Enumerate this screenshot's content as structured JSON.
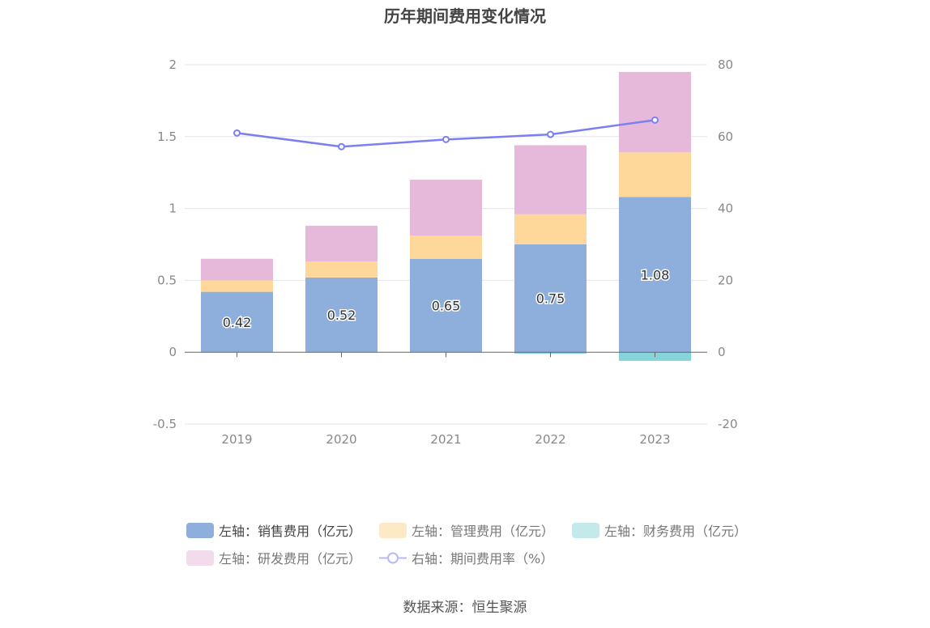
{
  "title": "历年期间费用变化情况",
  "source": "数据来源：恒生聚源",
  "colors": {
    "sales": "#8eaedb",
    "admin": "#fed89b",
    "finance": "#86d3d8",
    "rd": "#e6b9da",
    "rate": "#7b7fef"
  },
  "chart_data": {
    "type": "bar",
    "stacked": true,
    "categories": [
      "2019",
      "2020",
      "2021",
      "2022",
      "2023"
    ],
    "left_axis": {
      "ylim": [
        -0.5,
        2
      ],
      "ticks": [
        "-0.5",
        "0",
        "0.5",
        "1",
        "1.5",
        "2"
      ]
    },
    "right_axis": {
      "ylim": [
        -20,
        80
      ],
      "ticks": [
        "-20",
        "0",
        "20",
        "40",
        "60",
        "80"
      ]
    },
    "series": [
      {
        "name": "左轴：销售费用（亿元）",
        "axis": "left",
        "type": "bar",
        "values": [
          0.42,
          0.52,
          0.65,
          0.75,
          1.08
        ],
        "labels": [
          "0.42",
          "0.52",
          "0.65",
          "0.75",
          "1.08"
        ]
      },
      {
        "name": "左轴：管理费用（亿元）",
        "axis": "left",
        "type": "bar",
        "values": [
          0.08,
          0.11,
          0.16,
          0.21,
          0.31
        ]
      },
      {
        "name": "左轴：财务费用（亿元）",
        "axis": "left",
        "type": "bar",
        "values": [
          0.0,
          0.0,
          0.0,
          -0.01,
          -0.06
        ]
      },
      {
        "name": "左轴：研发费用（亿元）",
        "axis": "left",
        "type": "bar",
        "values": [
          0.15,
          0.25,
          0.39,
          0.48,
          0.56
        ]
      },
      {
        "name": "右轴：期间费用率（%）",
        "axis": "right",
        "type": "line",
        "values": [
          61.0,
          57.2,
          59.2,
          60.6,
          64.6
        ]
      }
    ],
    "legend_position": "bottom",
    "grid": true
  }
}
